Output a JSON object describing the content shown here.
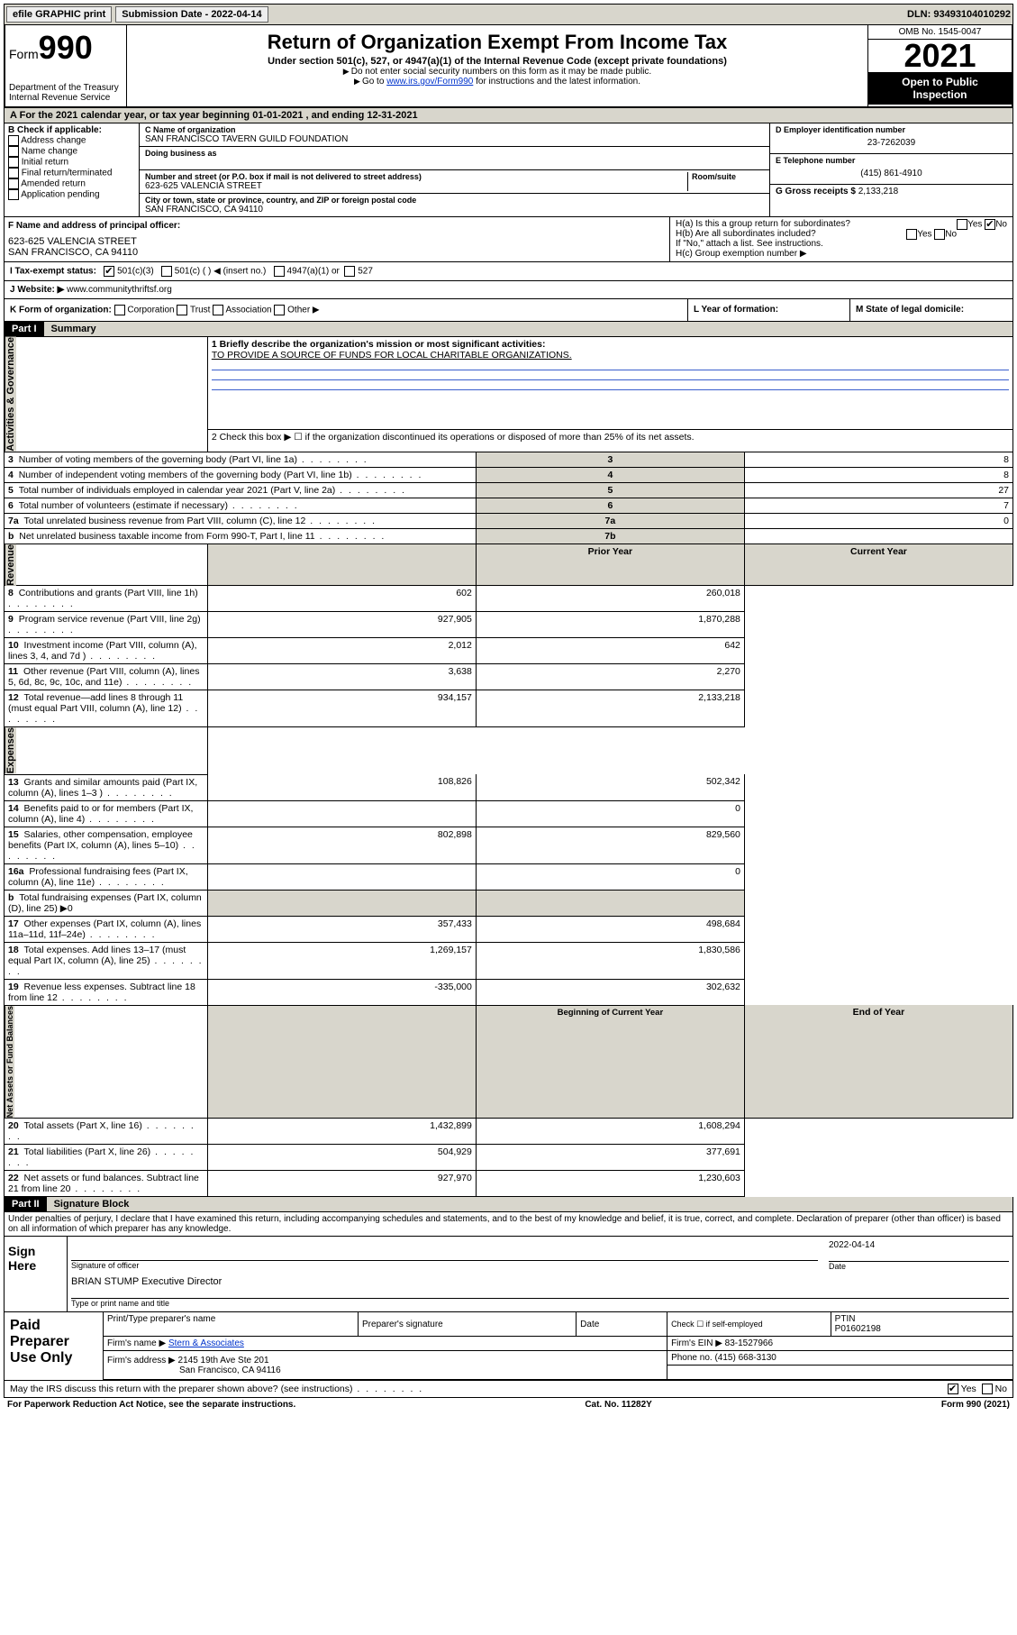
{
  "topbar": {
    "efile": "efile GRAPHIC print",
    "submission_label": "Submission Date - 2022-04-14",
    "dln_label": "DLN: 93493104010292"
  },
  "header": {
    "form_prefix": "Form",
    "form_number": "990",
    "dept": "Department of the Treasury",
    "irs": "Internal Revenue Service",
    "title": "Return of Organization Exempt From Income Tax",
    "subtitle": "Under section 501(c), 527, or 4947(a)(1) of the Internal Revenue Code (except private foundations)",
    "note1": "Do not enter social security numbers on this form as it may be made public.",
    "note2_pre": "Go to ",
    "note2_link": "www.irs.gov/Form990",
    "note2_post": " for instructions and the latest information.",
    "omb": "OMB No. 1545-0047",
    "year": "2021",
    "open1": "Open to Public",
    "open2": "Inspection"
  },
  "period": {
    "text": "For the 2021 calendar year, or tax year beginning 01-01-2021   , and ending 12-31-2021"
  },
  "boxB": {
    "label": "B Check if applicable:",
    "items": [
      "Address change",
      "Name change",
      "Initial return",
      "Final return/terminated",
      "Amended return",
      "Application pending"
    ]
  },
  "boxC": {
    "name_lbl": "C Name of organization",
    "name": "SAN FRANCISCO TAVERN GUILD FOUNDATION",
    "dba_lbl": "Doing business as",
    "addr_lbl": "Number and street (or P.O. box if mail is not delivered to street address)",
    "room_lbl": "Room/suite",
    "addr": "623-625 VALENCIA STREET",
    "city_lbl": "City or town, state or province, country, and ZIP or foreign postal code",
    "city": "SAN FRANCISCO, CA  94110"
  },
  "boxD": {
    "lbl": "D Employer identification number",
    "val": "23-7262039"
  },
  "boxE": {
    "lbl": "E Telephone number",
    "val": "(415) 861-4910"
  },
  "boxG": {
    "lbl": "G Gross receipts $",
    "val": "2,133,218"
  },
  "boxF": {
    "lbl": "F  Name and address of principal officer:",
    "addr1": "623-625 VALENCIA STREET",
    "addr2": "SAN FRANCISCO, CA  94110"
  },
  "boxH": {
    "a": "H(a)  Is this a group return for subordinates?",
    "b": "H(b)  Are all subordinates included?",
    "bnote": "If \"No,\" attach a list. See instructions.",
    "c": "H(c)  Group exemption number ▶",
    "yes": "Yes",
    "no": "No"
  },
  "boxI": {
    "lbl": "I   Tax-exempt status:",
    "o1": "501(c)(3)",
    "o2": "501(c) (  ) ◀ (insert no.)",
    "o3": "4947(a)(1) or",
    "o4": "527"
  },
  "boxJ": {
    "lbl": "J   Website: ▶",
    "val": "www.communitythriftsf.org"
  },
  "boxK": {
    "lbl": "K Form of organization:",
    "o1": "Corporation",
    "o2": "Trust",
    "o3": "Association",
    "o4": "Other ▶"
  },
  "boxL": {
    "lbl": "L Year of formation:"
  },
  "boxM": {
    "lbl": "M State of legal domicile:"
  },
  "part1": {
    "bar": "Part I",
    "title": "Summary",
    "line1_lbl": "1  Briefly describe the organization's mission or most significant activities:",
    "line1_val": "TO PROVIDE A SOURCE OF FUNDS FOR LOCAL CHARITABLE ORGANIZATIONS.",
    "line2": "2   Check this box ▶ ☐  if the organization discontinued its operations or disposed of more than 25% of its net assets.",
    "side_ag": "Activities & Governance",
    "side_rev": "Revenue",
    "side_exp": "Expenses",
    "side_na": "Net Assets or Fund Balances",
    "rows_ag": [
      {
        "n": "3",
        "t": "Number of voting members of the governing body (Part VI, line 1a)",
        "k": "3",
        "v": "8"
      },
      {
        "n": "4",
        "t": "Number of independent voting members of the governing body (Part VI, line 1b)",
        "k": "4",
        "v": "8"
      },
      {
        "n": "5",
        "t": "Total number of individuals employed in calendar year 2021 (Part V, line 2a)",
        "k": "5",
        "v": "27"
      },
      {
        "n": "6",
        "t": "Total number of volunteers (estimate if necessary)",
        "k": "6",
        "v": "7"
      },
      {
        "n": "7a",
        "t": "Total unrelated business revenue from Part VIII, column (C), line 12",
        "k": "7a",
        "v": "0"
      },
      {
        "n": "b",
        "t": "Net unrelated business taxable income from Form 990-T, Part I, line 11",
        "k": "7b",
        "v": ""
      }
    ],
    "hdr_prior": "Prior Year",
    "hdr_curr": "Current Year",
    "rows_rev": [
      {
        "n": "8",
        "t": "Contributions and grants (Part VIII, line 1h)",
        "p": "602",
        "c": "260,018"
      },
      {
        "n": "9",
        "t": "Program service revenue (Part VIII, line 2g)",
        "p": "927,905",
        "c": "1,870,288"
      },
      {
        "n": "10",
        "t": "Investment income (Part VIII, column (A), lines 3, 4, and 7d )",
        "p": "2,012",
        "c": "642"
      },
      {
        "n": "11",
        "t": "Other revenue (Part VIII, column (A), lines 5, 6d, 8c, 9c, 10c, and 11e)",
        "p": "3,638",
        "c": "2,270"
      },
      {
        "n": "12",
        "t": "Total revenue—add lines 8 through 11 (must equal Part VIII, column (A), line 12)",
        "p": "934,157",
        "c": "2,133,218"
      }
    ],
    "rows_exp": [
      {
        "n": "13",
        "t": "Grants and similar amounts paid (Part IX, column (A), lines 1–3 )",
        "p": "108,826",
        "c": "502,342"
      },
      {
        "n": "14",
        "t": "Benefits paid to or for members (Part IX, column (A), line 4)",
        "p": "",
        "c": "0"
      },
      {
        "n": "15",
        "t": "Salaries, other compensation, employee benefits (Part IX, column (A), lines 5–10)",
        "p": "802,898",
        "c": "829,560"
      },
      {
        "n": "16a",
        "t": "Professional fundraising fees (Part IX, column (A), line 11e)",
        "p": "",
        "c": "0"
      },
      {
        "n": "b",
        "t": "Total fundraising expenses (Part IX, column (D), line 25) ▶0",
        "p": null,
        "c": null
      },
      {
        "n": "17",
        "t": "Other expenses (Part IX, column (A), lines 11a–11d, 11f–24e)",
        "p": "357,433",
        "c": "498,684"
      },
      {
        "n": "18",
        "t": "Total expenses. Add lines 13–17 (must equal Part IX, column (A), line 25)",
        "p": "1,269,157",
        "c": "1,830,586"
      },
      {
        "n": "19",
        "t": "Revenue less expenses. Subtract line 18 from line 12",
        "p": "-335,000",
        "c": "302,632"
      }
    ],
    "hdr_beg": "Beginning of Current Year",
    "hdr_end": "End of Year",
    "rows_na": [
      {
        "n": "20",
        "t": "Total assets (Part X, line 16)",
        "p": "1,432,899",
        "c": "1,608,294"
      },
      {
        "n": "21",
        "t": "Total liabilities (Part X, line 26)",
        "p": "504,929",
        "c": "377,691"
      },
      {
        "n": "22",
        "t": "Net assets or fund balances. Subtract line 21 from line 20",
        "p": "927,970",
        "c": "1,230,603"
      }
    ]
  },
  "part2": {
    "bar": "Part II",
    "title": "Signature Block",
    "decl": "Under penalties of perjury, I declare that I have examined this return, including accompanying schedules and statements, and to the best of my knowledge and belief, it is true, correct, and complete. Declaration of preparer (other than officer) is based on all information of which preparer has any knowledge.",
    "sign_here": "Sign Here",
    "sig_officer": "Signature of officer",
    "sig_date_lbl": "Date",
    "sig_date": "2022-04-14",
    "name_title": "BRIAN STUMP Executive Director",
    "name_title_lbl": "Type or print name and title",
    "paid": "Paid Preparer Use Only",
    "p_name_lbl": "Print/Type preparer's name",
    "p_sig_lbl": "Preparer's signature",
    "p_date_lbl": "Date",
    "p_check": "Check ☐ if self-employed",
    "p_ptin_lbl": "PTIN",
    "p_ptin": "P01602198",
    "firm_name_lbl": "Firm's name   ▶",
    "firm_name": "Stern & Associates",
    "firm_ein_lbl": "Firm's EIN ▶",
    "firm_ein": "83-1527966",
    "firm_addr_lbl": "Firm's address ▶",
    "firm_addr1": "2145 19th Ave Ste 201",
    "firm_addr2": "San Francisco, CA  94116",
    "firm_phone_lbl": "Phone no.",
    "firm_phone": "(415) 668-3130",
    "may_irs": "May the IRS discuss this return with the preparer shown above? (see instructions)",
    "yes": "Yes",
    "no": "No"
  },
  "footer": {
    "pra": "For Paperwork Reduction Act Notice, see the separate instructions.",
    "cat": "Cat. No. 11282Y",
    "form": "Form 990 (2021)"
  },
  "colors": {
    "shade": "#d8d6cc",
    "link": "#0033cc"
  }
}
